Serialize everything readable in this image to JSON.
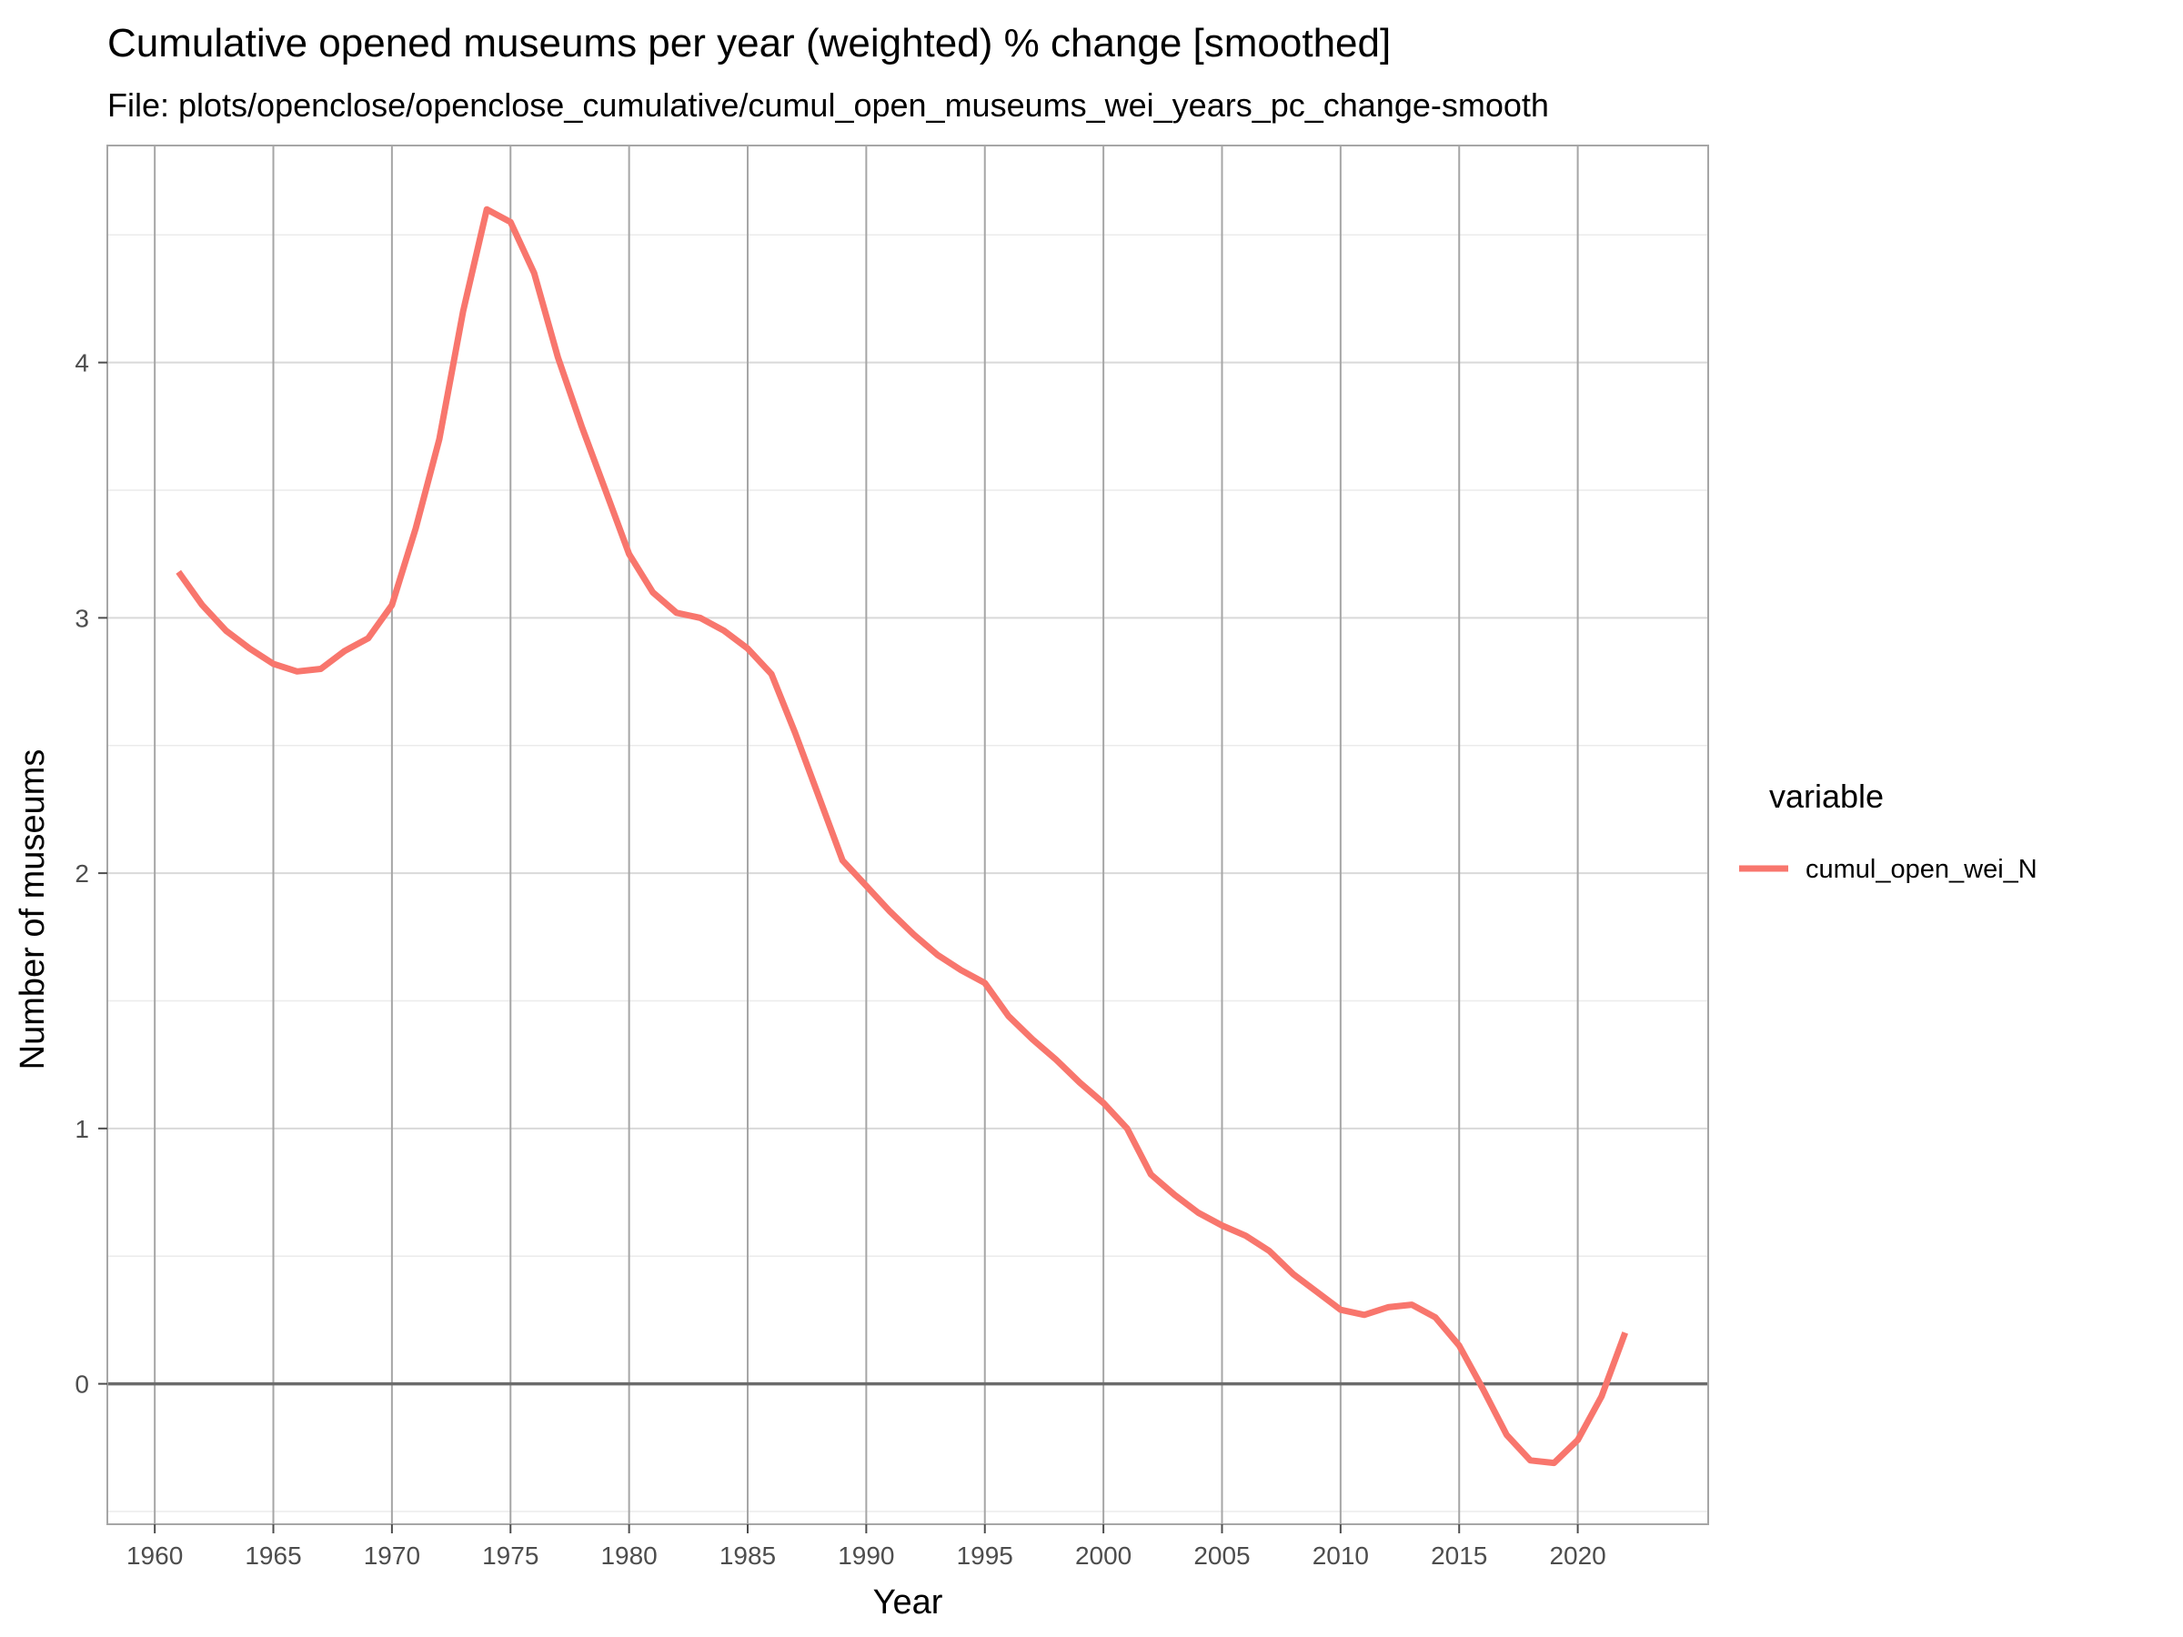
{
  "chart_data": {
    "type": "line",
    "title": "Cumulative opened museums per year (weighted) % change [smoothed]",
    "subtitle": "File: plots/openclose/openclose_cumulative/cumul_open_museums_wei_years_pc_change-smooth",
    "xlabel": "Year",
    "ylabel": "Number of museums",
    "xlim": [
      1958,
      2025.5
    ],
    "ylim": [
      -0.55,
      4.85
    ],
    "x_ticks": [
      1960,
      1965,
      1970,
      1975,
      1980,
      1985,
      1990,
      1995,
      2000,
      2005,
      2010,
      2015,
      2020
    ],
    "x_tick_labels": [
      "1960",
      "1965",
      "1970",
      "1975",
      "1980",
      "1985",
      "1990",
      "1995",
      "2000",
      "2005",
      "2010",
      "2015",
      "2020"
    ],
    "y_ticks": [
      0,
      1,
      2,
      3,
      4
    ],
    "y_tick_labels": [
      "0",
      "1",
      "2",
      "3",
      "4"
    ],
    "x_minor_grid": false,
    "y_minor_ticks": [
      -0.5,
      0.5,
      1.5,
      2.5,
      3.5,
      4.5
    ],
    "grid": true,
    "legend_title": "variable",
    "legend_position": "right",
    "series": [
      {
        "name": "cumul_open_wei_N",
        "color": "#F8766D",
        "x": [
          1961,
          1962,
          1963,
          1964,
          1965,
          1966,
          1967,
          1968,
          1969,
          1970,
          1971,
          1972,
          1973,
          1974,
          1975,
          1976,
          1977,
          1978,
          1979,
          1980,
          1981,
          1982,
          1983,
          1984,
          1985,
          1986,
          1987,
          1988,
          1989,
          1990,
          1991,
          1992,
          1993,
          1994,
          1995,
          1996,
          1997,
          1998,
          1999,
          2000,
          2001,
          2002,
          2003,
          2004,
          2005,
          2006,
          2007,
          2008,
          2009,
          2010,
          2011,
          2012,
          2013,
          2014,
          2015,
          2016,
          2017,
          2018,
          2019,
          2020,
          2021,
          2022
        ],
        "values": [
          3.18,
          3.05,
          2.95,
          2.88,
          2.82,
          2.79,
          2.8,
          2.87,
          2.92,
          3.05,
          3.35,
          3.7,
          4.2,
          4.6,
          4.55,
          4.35,
          4.02,
          3.75,
          3.5,
          3.25,
          3.1,
          3.02,
          3.0,
          2.95,
          2.88,
          2.78,
          2.55,
          2.3,
          2.05,
          1.95,
          1.85,
          1.76,
          1.68,
          1.62,
          1.57,
          1.44,
          1.35,
          1.27,
          1.18,
          1.1,
          1.0,
          0.82,
          0.74,
          0.67,
          0.62,
          0.58,
          0.52,
          0.43,
          0.36,
          0.29,
          0.27,
          0.3,
          0.31,
          0.26,
          0.15,
          -0.02,
          -0.2,
          -0.3,
          -0.31,
          -0.22,
          -0.05,
          0.2
        ]
      }
    ]
  }
}
